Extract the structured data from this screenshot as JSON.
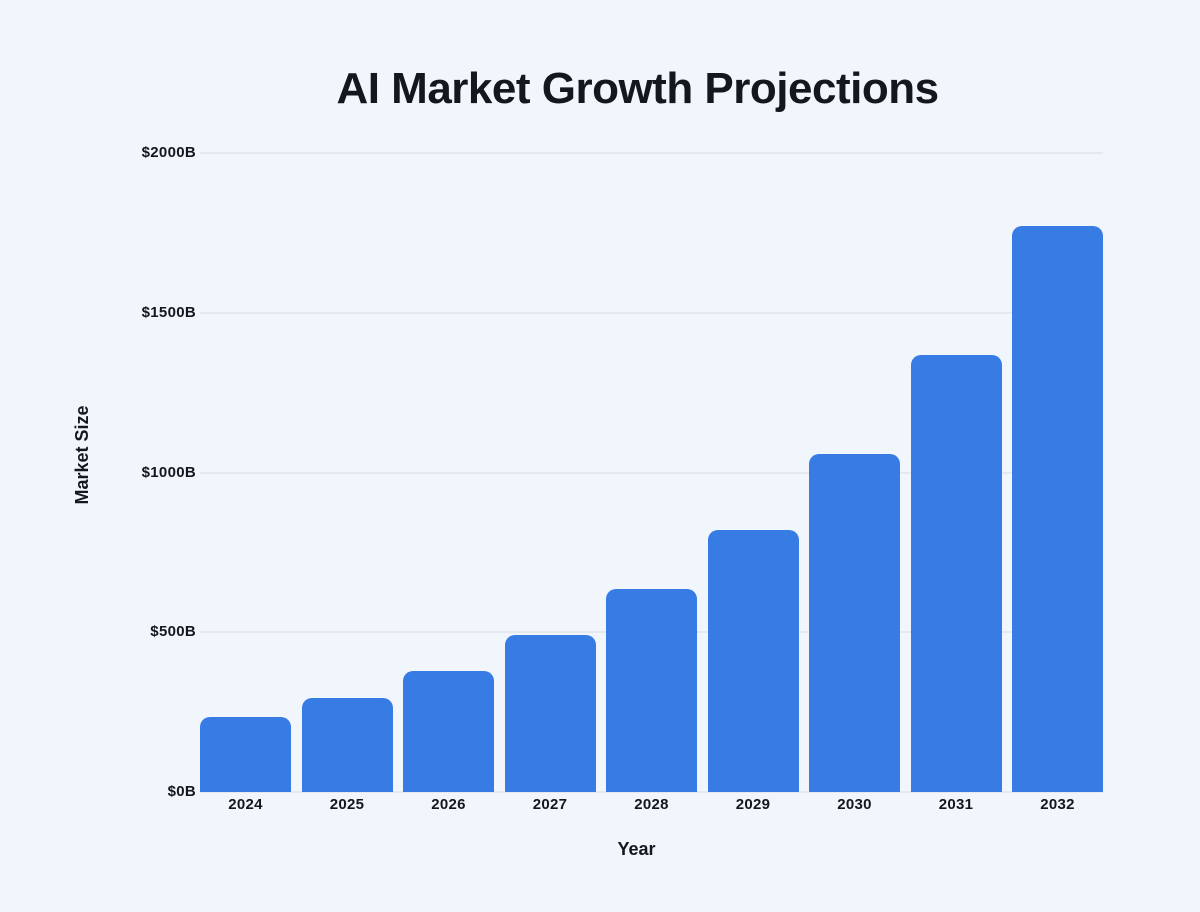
{
  "page": {
    "background_color": "#f1f6fc",
    "text_color": "#14171c"
  },
  "chart_data": {
    "type": "bar",
    "title": "AI Market Growth Projections",
    "xlabel": "Year",
    "ylabel": "Market Size",
    "categories": [
      "2024",
      "2025",
      "2026",
      "2027",
      "2028",
      "2029",
      "2030",
      "2031",
      "2032"
    ],
    "values": [
      235,
      294,
      380,
      491,
      634,
      820,
      1059,
      1369,
      1772
    ],
    "ylim": [
      0,
      2000
    ],
    "yticks": [
      {
        "value": 0,
        "label": "$0B"
      },
      {
        "value": 500,
        "label": "$500B"
      },
      {
        "value": 1000,
        "label": "$1000B"
      },
      {
        "value": 1500,
        "label": "$1500B"
      },
      {
        "value": 2000,
        "label": "$2000B"
      }
    ],
    "grid": true,
    "legend": "none",
    "bar_color": "#377ce4",
    "gridline_color": "#e4e9ef"
  }
}
